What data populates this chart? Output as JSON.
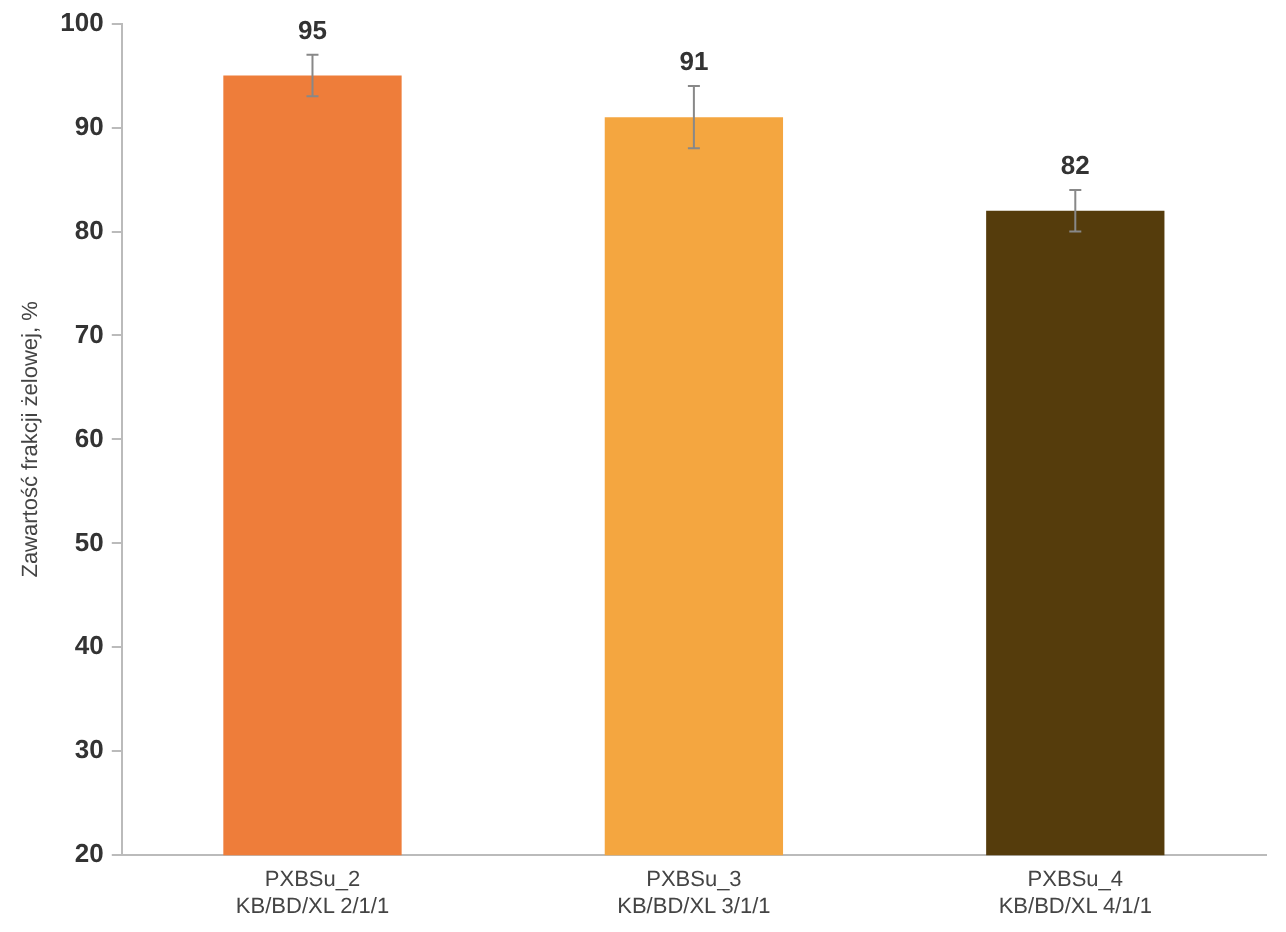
{
  "chart_data": {
    "type": "bar",
    "ylabel": "Zawartość frakcji żelowej, %",
    "categories": [
      [
        "PXBSu_2",
        "KB/BD/XL 2/1/1"
      ],
      [
        "PXBSu_3",
        "KB/BD/XL 3/1/1"
      ],
      [
        "PXBSu_4",
        "KB/BD/XL 4/1/1"
      ]
    ],
    "values": [
      95,
      91,
      82
    ],
    "colors": [
      "#ee7d3a",
      "#f4a640",
      "#553c0c"
    ],
    "errors": [
      2,
      3,
      2
    ],
    "data_labels": true,
    "ylim": [
      20,
      100
    ],
    "yticks": [
      20,
      30,
      40,
      50,
      60,
      70,
      80,
      90,
      100
    ],
    "grid": false,
    "legend": false
  }
}
